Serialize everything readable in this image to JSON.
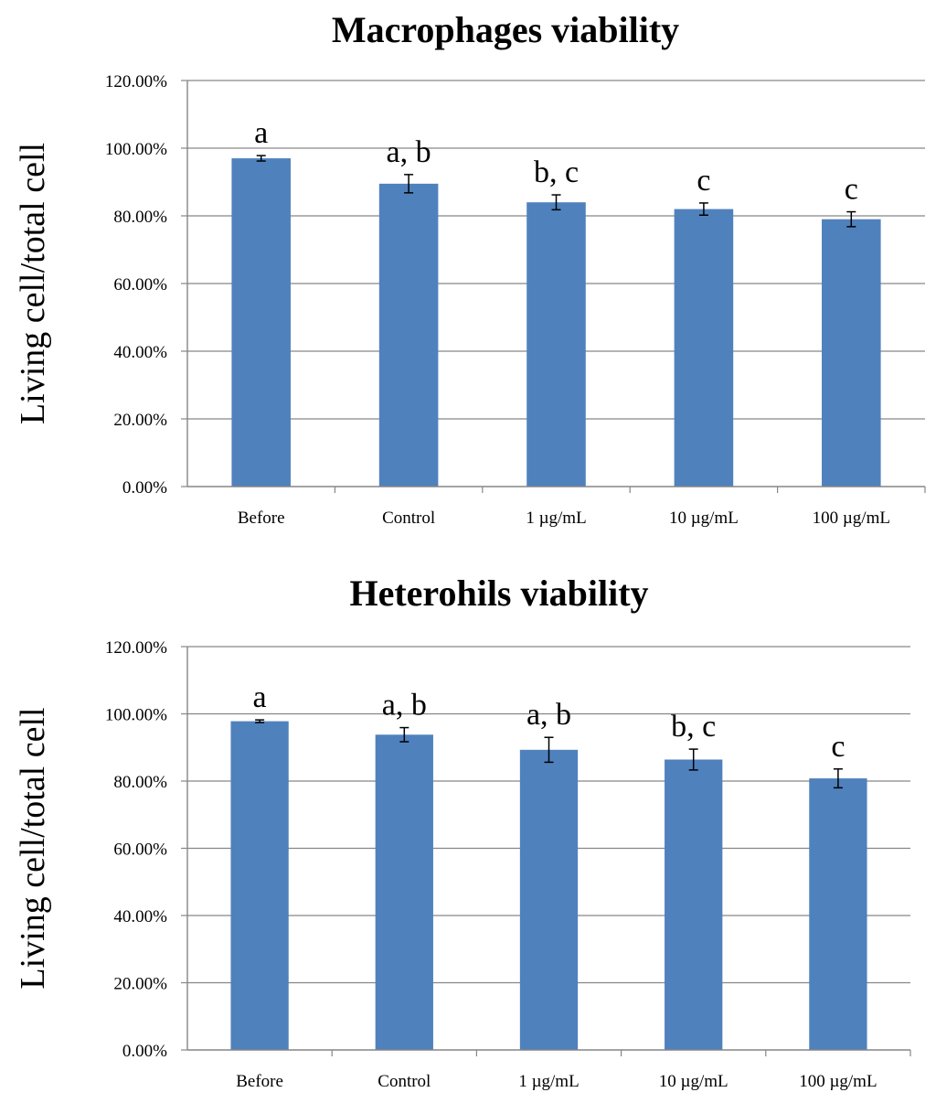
{
  "colors": {
    "bar": "#4f81bd",
    "grid": "#868686",
    "axis": "#868686",
    "errorbar": "#000000",
    "background": "#ffffff"
  },
  "chart_data": [
    {
      "type": "bar",
      "title": "Macrophages viability",
      "xlabel": "",
      "ylabel": "Living cell/total cell",
      "ylim": [
        0,
        120
      ],
      "yticks": [
        0,
        20,
        40,
        60,
        80,
        100,
        120
      ],
      "ytick_labels": [
        "0.00%",
        "20.00%",
        "40.00%",
        "60.00%",
        "80.00%",
        "100.00%",
        "120.00%"
      ],
      "grid": true,
      "categories": [
        "Before",
        "Control",
        "1 µg/mL",
        "10 µg/mL",
        "100 µg/mL"
      ],
      "values": [
        97,
        89.5,
        84,
        82,
        79
      ],
      "errors": [
        0.8,
        2.7,
        2.2,
        1.8,
        2.2
      ],
      "significance": [
        "a",
        "a, b",
        "b, c",
        "c",
        "c"
      ]
    },
    {
      "type": "bar",
      "title": "Heterohils viability",
      "xlabel": "",
      "ylabel": "Living cell/total cell",
      "ylim": [
        0,
        120
      ],
      "yticks": [
        0,
        20,
        40,
        60,
        80,
        100,
        120
      ],
      "ytick_labels": [
        "0.00%",
        "20.00%",
        "40.00%",
        "60.00%",
        "80.00%",
        "100.00%",
        "120.00%"
      ],
      "grid": true,
      "categories": [
        "Before",
        "Control",
        "1 µg/mL",
        "10 µg/mL",
        "100 µg/mL"
      ],
      "values": [
        97.8,
        93.8,
        89.3,
        86.4,
        80.8
      ],
      "errors": [
        0.4,
        2.1,
        3.7,
        3.1,
        2.8
      ],
      "significance": [
        "a",
        "a, b",
        "a, b",
        "b, c",
        "c"
      ]
    }
  ]
}
